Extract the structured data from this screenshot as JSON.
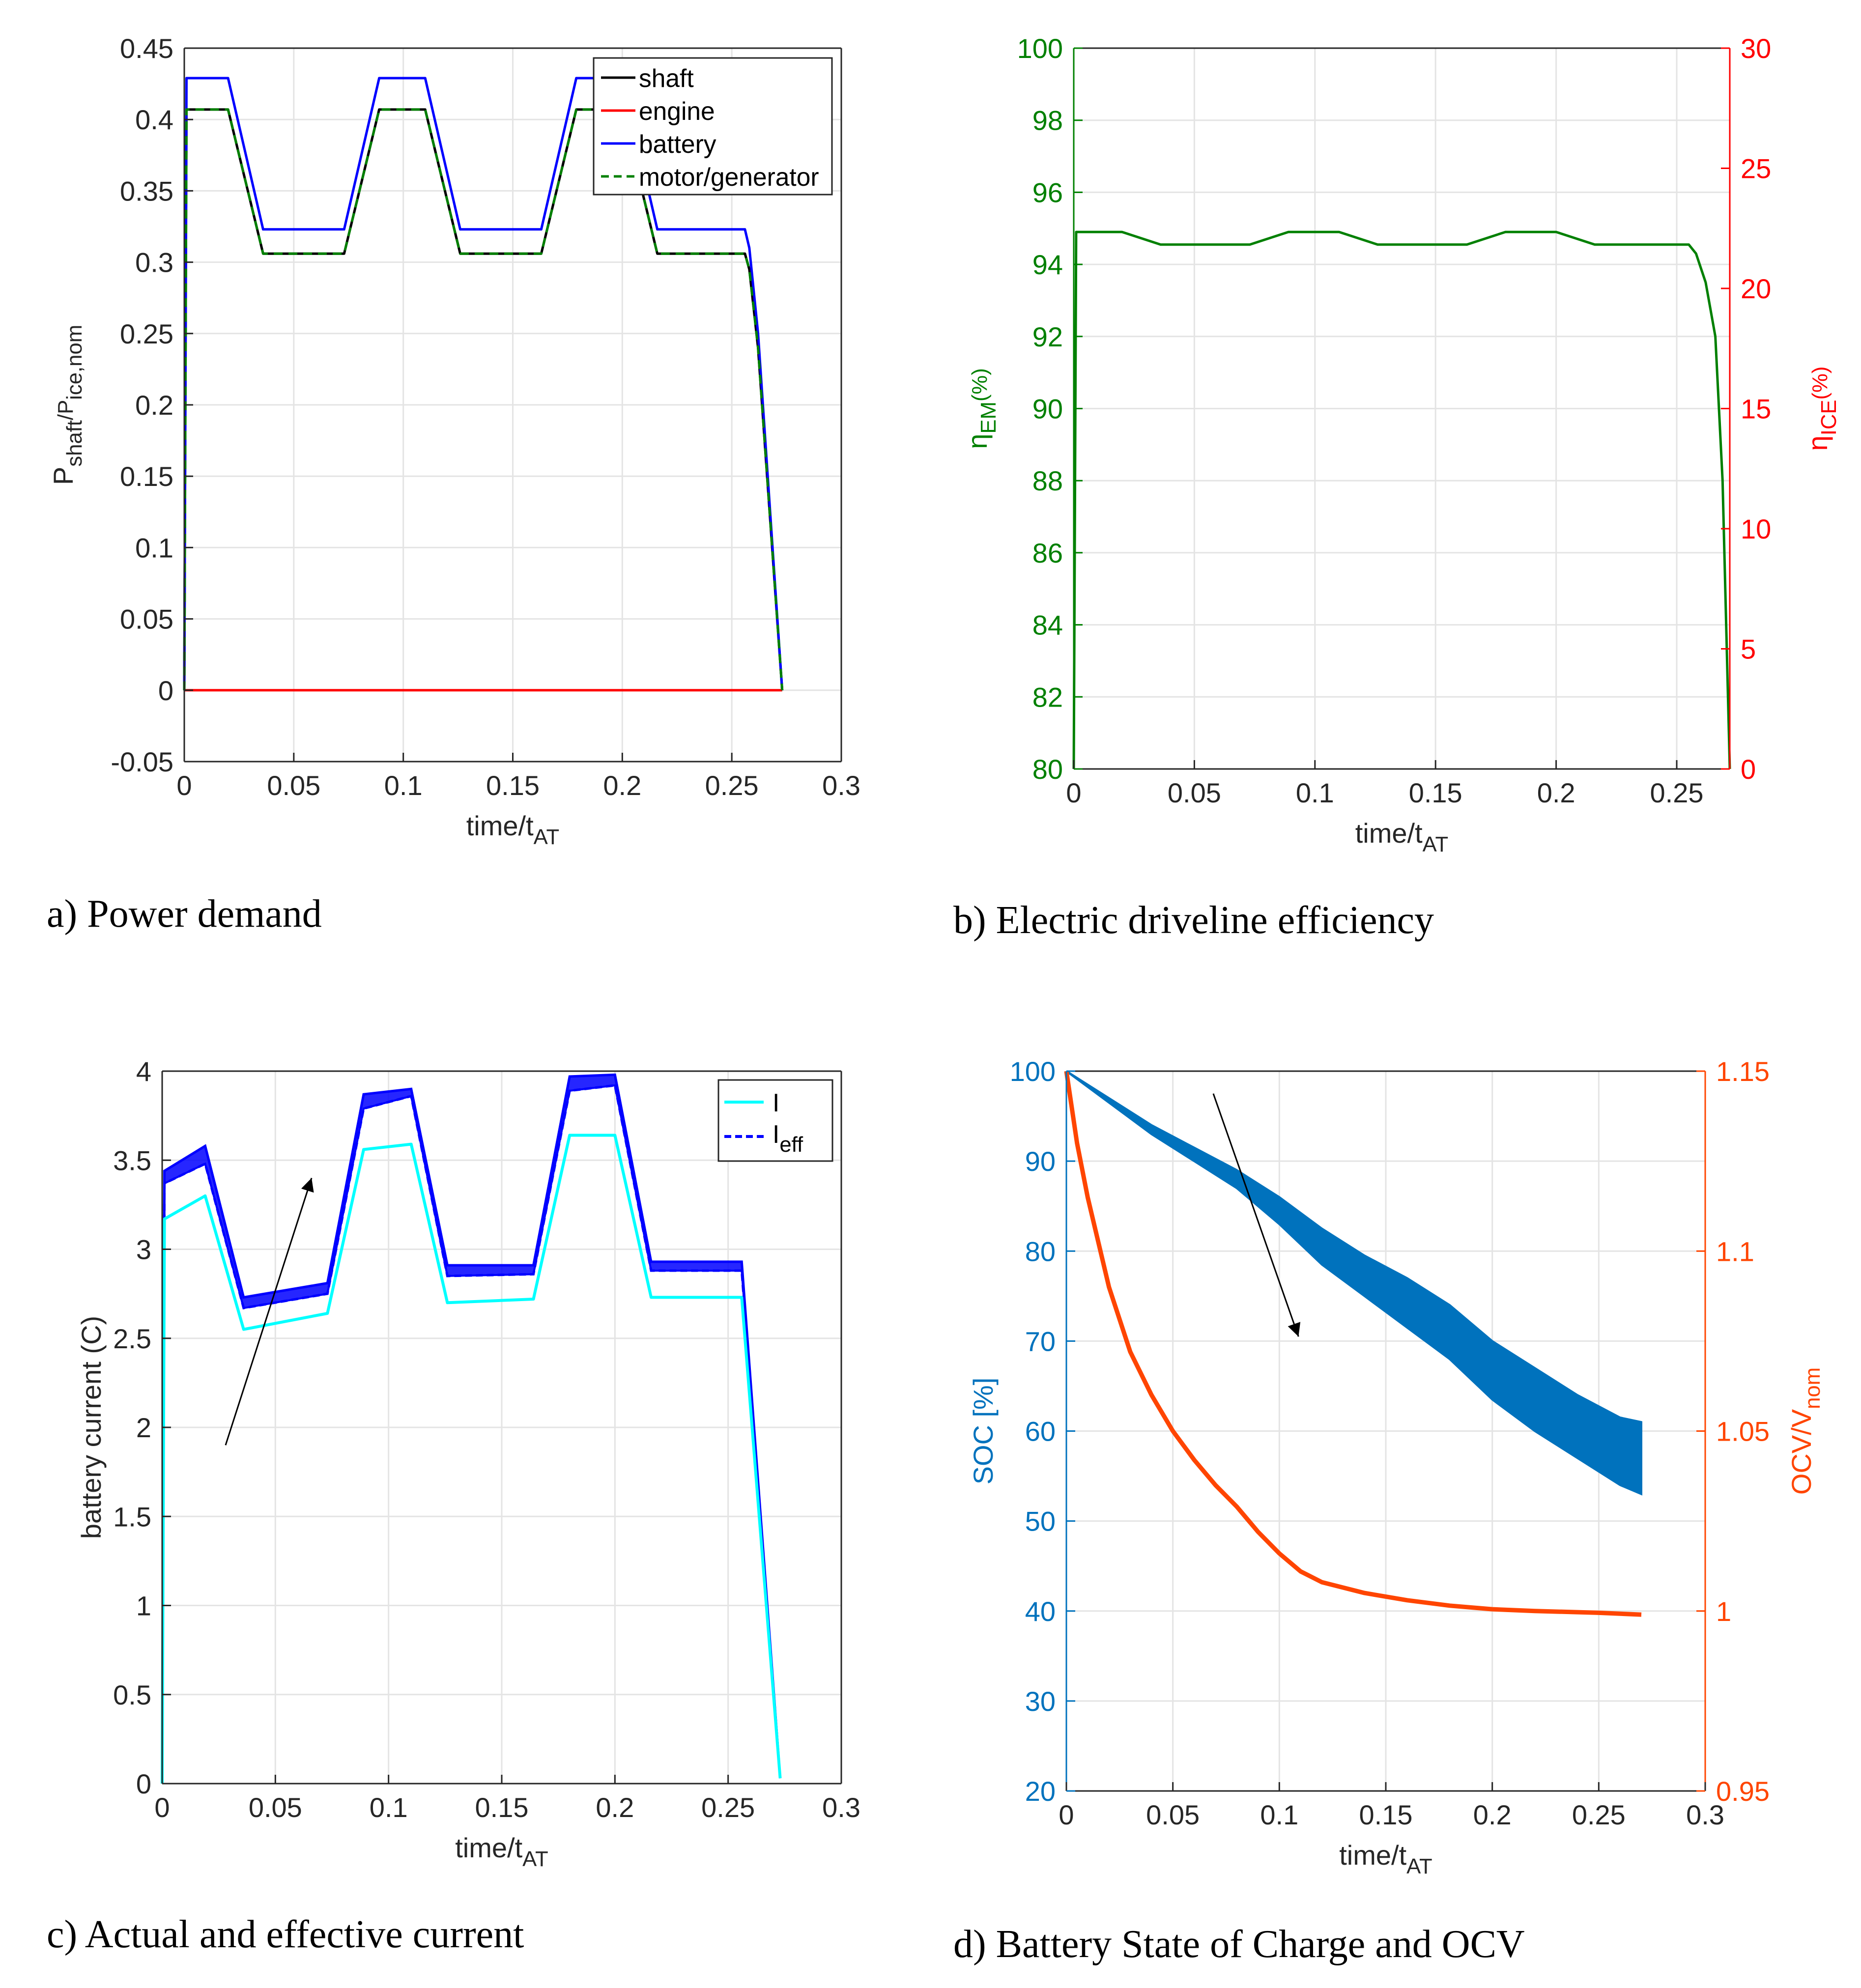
{
  "colors": {
    "black": "#000000",
    "red": "#ff0000",
    "blue": "#0000ff",
    "green": "#008000",
    "cyan": "#00ffff",
    "matlab_blue": "#0072bd",
    "matlab_orange": "#ff4500",
    "grid": "#e4e4e4"
  },
  "captions": {
    "a": "a) Power demand",
    "b": "b) Electric driveline efficiency",
    "c": "c) Actual and effective current",
    "d": "d) Battery State of Charge and OCV"
  },
  "chart_data": [
    {
      "id": "a",
      "type": "line",
      "xlabel": "time/t",
      "xlabel_sub": "AT",
      "ylabel": "P",
      "ylabel_sub1": "shaft",
      "ylabel_mid": "/P",
      "ylabel_sub2": "ice,nom",
      "xlim": [
        0,
        0.3
      ],
      "ylim": [
        -0.05,
        0.45
      ],
      "xticks": [
        "0",
        "0.05",
        "0.1",
        "0.15",
        "0.2",
        "0.25",
        "0.3"
      ],
      "yticks": [
        "-0.05",
        "0",
        "0.05",
        "0.1",
        "0.15",
        "0.2",
        "0.25",
        "0.3",
        "0.35",
        "0.4",
        "0.45"
      ],
      "legend": [
        "shaft",
        "engine",
        "battery",
        "motor/generator"
      ],
      "series": [
        {
          "name": "shaft",
          "color": "#000000",
          "x": [
            0,
            0.001,
            0.02,
            0.036,
            0.073,
            0.089,
            0.11,
            0.126,
            0.163,
            0.179,
            0.2,
            0.216,
            0.256,
            0.258,
            0.262,
            0.273
          ],
          "y": [
            0,
            0.407,
            0.407,
            0.306,
            0.306,
            0.407,
            0.407,
            0.306,
            0.306,
            0.407,
            0.407,
            0.306,
            0.306,
            0.295,
            0.24,
            0
          ]
        },
        {
          "name": "engine",
          "color": "#ff0000",
          "x": [
            0,
            0.273
          ],
          "y": [
            0,
            0
          ]
        },
        {
          "name": "battery",
          "color": "#0000ff",
          "x": [
            0,
            0.001,
            0.02,
            0.036,
            0.073,
            0.089,
            0.11,
            0.126,
            0.163,
            0.179,
            0.2,
            0.216,
            0.256,
            0.258,
            0.262,
            0.273
          ],
          "y": [
            0,
            0.429,
            0.429,
            0.323,
            0.323,
            0.429,
            0.429,
            0.323,
            0.323,
            0.429,
            0.429,
            0.323,
            0.323,
            0.31,
            0.25,
            0
          ]
        },
        {
          "name": "motor/generator",
          "color": "#008000",
          "dash": true,
          "x": [
            0,
            0.001,
            0.02,
            0.036,
            0.073,
            0.089,
            0.11,
            0.126,
            0.163,
            0.179,
            0.2,
            0.216,
            0.256,
            0.258,
            0.262,
            0.273
          ],
          "y": [
            0,
            0.407,
            0.407,
            0.306,
            0.306,
            0.407,
            0.407,
            0.306,
            0.306,
            0.407,
            0.407,
            0.306,
            0.306,
            0.295,
            0.24,
            0
          ]
        }
      ]
    },
    {
      "id": "b",
      "type": "line",
      "xlabel": "time/t",
      "xlabel_sub": "AT",
      "ylabel_left": "η",
      "ylabel_left_sub": "EM",
      "ylabel_left_unit": "(%)",
      "ylabel_right": "η",
      "ylabel_right_sub": "ICE",
      "ylabel_right_unit": "(%)",
      "xlim": [
        0,
        0.272
      ],
      "ylim_left": [
        80,
        100
      ],
      "ylim_right": [
        0,
        30
      ],
      "xticks": [
        "0",
        "0.05",
        "0.1",
        "0.15",
        "0.2",
        "0.25"
      ],
      "yticks_left": [
        "80",
        "82",
        "84",
        "86",
        "88",
        "90",
        "92",
        "94",
        "96",
        "98",
        "100"
      ],
      "yticks_right": [
        "0",
        "5",
        "10",
        "15",
        "20",
        "25",
        "30"
      ],
      "series": [
        {
          "name": "eta_EM",
          "axis": "left",
          "color": "#008000",
          "x": [
            0,
            0.001,
            0.02,
            0.036,
            0.073,
            0.089,
            0.11,
            0.126,
            0.163,
            0.179,
            0.2,
            0.216,
            0.255,
            0.258,
            0.262,
            0.266,
            0.269,
            0.272
          ],
          "y": [
            80,
            94.9,
            94.9,
            94.55,
            94.55,
            94.9,
            94.9,
            94.55,
            94.55,
            94.9,
            94.9,
            94.55,
            94.55,
            94.3,
            93.5,
            92,
            88,
            80
          ]
        }
      ]
    },
    {
      "id": "c",
      "type": "line",
      "xlabel": "time/t",
      "xlabel_sub": "AT",
      "ylabel": "battery current (C)",
      "xlim": [
        0,
        0.3
      ],
      "ylim": [
        0,
        4
      ],
      "xticks": [
        "0",
        "0.05",
        "0.1",
        "0.15",
        "0.2",
        "0.25",
        "0.3"
      ],
      "yticks": [
        "0",
        "0.5",
        "1",
        "1.5",
        "2",
        "2.5",
        "3",
        "3.5",
        "4"
      ],
      "legend": [
        "I",
        "I",
        "eff"
      ],
      "series": [
        {
          "name": "I",
          "color": "#00ffff",
          "x": [
            0,
            0.001,
            0.019,
            0.036,
            0.073,
            0.089,
            0.11,
            0.126,
            0.164,
            0.18,
            0.2,
            0.216,
            0.256,
            0.273
          ],
          "y": [
            0,
            3.17,
            3.3,
            2.55,
            2.64,
            3.56,
            3.59,
            2.7,
            2.72,
            3.64,
            3.64,
            2.73,
            2.73,
            0.03
          ]
        },
        {
          "name": "I_eff low",
          "color": "#0000ff",
          "x": [
            0,
            0.001,
            0.019,
            0.036,
            0.073,
            0.089,
            0.11,
            0.126,
            0.164,
            0.18,
            0.2,
            0.216,
            0.256,
            0.273
          ],
          "y": [
            0,
            3.37,
            3.48,
            2.67,
            2.75,
            3.79,
            3.86,
            2.85,
            2.86,
            3.89,
            3.92,
            2.88,
            2.88,
            0.03
          ]
        },
        {
          "name": "I_eff high",
          "color": "#0000ff",
          "x": [
            0,
            0.001,
            0.019,
            0.036,
            0.073,
            0.089,
            0.11,
            0.126,
            0.164,
            0.18,
            0.2,
            0.216,
            0.256,
            0.273
          ],
          "y": [
            0,
            3.44,
            3.58,
            2.73,
            2.81,
            3.87,
            3.9,
            2.91,
            2.91,
            3.97,
            3.98,
            2.93,
            2.93,
            0.03
          ]
        }
      ],
      "arrow": {
        "from": [
          0.028,
          1.9
        ],
        "to": [
          0.066,
          3.4
        ]
      }
    },
    {
      "id": "d",
      "type": "line",
      "xlabel": "time/t",
      "xlabel_sub": "AT",
      "ylabel_left": "SOC [%]",
      "ylabel_right": "OCV/V",
      "ylabel_right_sub": "nom",
      "xlim": [
        0,
        0.3
      ],
      "ylim_left": [
        20,
        100
      ],
      "ylim_right": [
        0.95,
        1.15
      ],
      "xticks": [
        "0",
        "0.05",
        "0.1",
        "0.15",
        "0.2",
        "0.25",
        "0.3"
      ],
      "yticks_left": [
        "20",
        "30",
        "40",
        "50",
        "60",
        "70",
        "80",
        "90",
        "100"
      ],
      "yticks_right": [
        "0.95",
        "1",
        "1.05",
        "1.1",
        "1.15"
      ],
      "series": [
        {
          "name": "SOC first",
          "axis": "left",
          "color": "#0072bd",
          "x": [
            0,
            0.02,
            0.04,
            0.06,
            0.08,
            0.1,
            0.12,
            0.14,
            0.16,
            0.18,
            0.2,
            0.22,
            0.24,
            0.26,
            0.27
          ],
          "y": [
            100,
            97,
            94,
            91.5,
            89,
            86,
            82.5,
            79.5,
            77,
            74,
            70,
            67,
            64,
            61.5,
            61
          ]
        },
        {
          "name": "SOC last",
          "axis": "left",
          "color": "#0072bd",
          "x": [
            0,
            0.02,
            0.04,
            0.06,
            0.08,
            0.1,
            0.12,
            0.14,
            0.16,
            0.18,
            0.2,
            0.22,
            0.24,
            0.26,
            0.27
          ],
          "y": [
            100,
            96.5,
            93,
            90,
            87,
            83,
            78.5,
            75,
            71.5,
            68,
            63.5,
            60,
            57,
            54,
            53
          ]
        },
        {
          "name": "OCV/Vnom",
          "axis": "right",
          "color": "#ff4500",
          "x": [
            0,
            0.005,
            0.01,
            0.02,
            0.03,
            0.04,
            0.05,
            0.06,
            0.07,
            0.08,
            0.09,
            0.1,
            0.11,
            0.12,
            0.14,
            0.16,
            0.18,
            0.2,
            0.22,
            0.25,
            0.27
          ],
          "y": [
            1.15,
            1.13,
            1.115,
            1.09,
            1.072,
            1.06,
            1.05,
            1.042,
            1.035,
            1.029,
            1.022,
            1.016,
            1.011,
            1.008,
            1.005,
            1.003,
            1.0015,
            1.0005,
            1.0,
            0.9995,
            0.999
          ]
        }
      ],
      "arrow": {
        "from": [
          0.069,
          97.5
        ],
        "to": [
          0.109,
          70.5
        ]
      }
    }
  ]
}
